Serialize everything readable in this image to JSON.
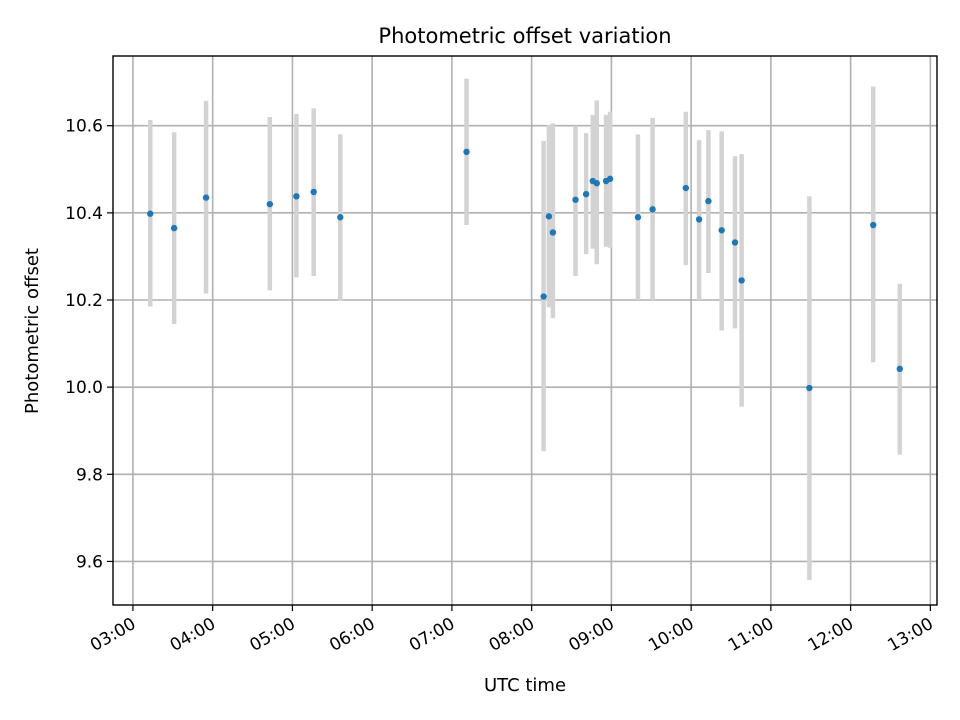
{
  "chart_data": {
    "type": "scatter",
    "title": "Photometric offset variation",
    "xlabel": "UTC time",
    "ylabel": "Photometric offset",
    "xlim": [
      "02:45",
      "13:05"
    ],
    "ylim": [
      9.5,
      10.76
    ],
    "x_ticks": [
      "03:00",
      "04:00",
      "05:00",
      "06:00",
      "07:00",
      "08:00",
      "09:00",
      "10:00",
      "11:00",
      "12:00",
      "13:00"
    ],
    "y_ticks": [
      "9.6",
      "9.8",
      "10.0",
      "10.2",
      "10.4",
      "10.6"
    ],
    "grid": true,
    "colors": {
      "points": "#1f77b4",
      "error_bars": "#d3d3d3",
      "grid": "#b0b0b0"
    },
    "series": [
      {
        "x": [
          "03:13",
          "03:31",
          "03:55",
          "04:43",
          "05:03",
          "05:16",
          "05:36",
          "07:11",
          "08:09",
          "08:13",
          "08:16",
          "08:33",
          "08:41",
          "08:46",
          "08:49",
          "08:56",
          "08:59",
          "09:20",
          "09:31",
          "09:56",
          "10:06",
          "10:13",
          "10:23",
          "10:33",
          "10:38",
          "11:29",
          "12:17",
          "12:37"
        ],
        "y": [
          10.398,
          10.365,
          10.435,
          10.42,
          10.438,
          10.448,
          10.39,
          10.54,
          10.208,
          10.392,
          10.355,
          10.43,
          10.443,
          10.473,
          10.468,
          10.473,
          10.478,
          10.39,
          10.408,
          10.457,
          10.385,
          10.427,
          10.36,
          10.332,
          10.245,
          9.998,
          10.372,
          10.042
        ],
        "yerr_low": [
          10.185,
          10.145,
          10.215,
          10.222,
          10.252,
          10.255,
          10.198,
          10.372,
          9.853,
          10.183,
          10.158,
          10.255,
          10.305,
          10.318,
          10.282,
          10.322,
          10.32,
          10.2,
          10.2,
          10.28,
          10.2,
          10.262,
          10.13,
          10.135,
          9.955,
          9.557,
          10.057,
          9.845
        ],
        "yerr_high": [
          10.613,
          10.585,
          10.657,
          10.62,
          10.627,
          10.64,
          10.58,
          10.708,
          10.565,
          10.602,
          10.605,
          10.6,
          10.583,
          10.625,
          10.658,
          10.625,
          10.632,
          10.58,
          10.618,
          10.632,
          10.567,
          10.59,
          10.587,
          10.53,
          10.535,
          10.438,
          10.69,
          10.237
        ]
      }
    ]
  }
}
